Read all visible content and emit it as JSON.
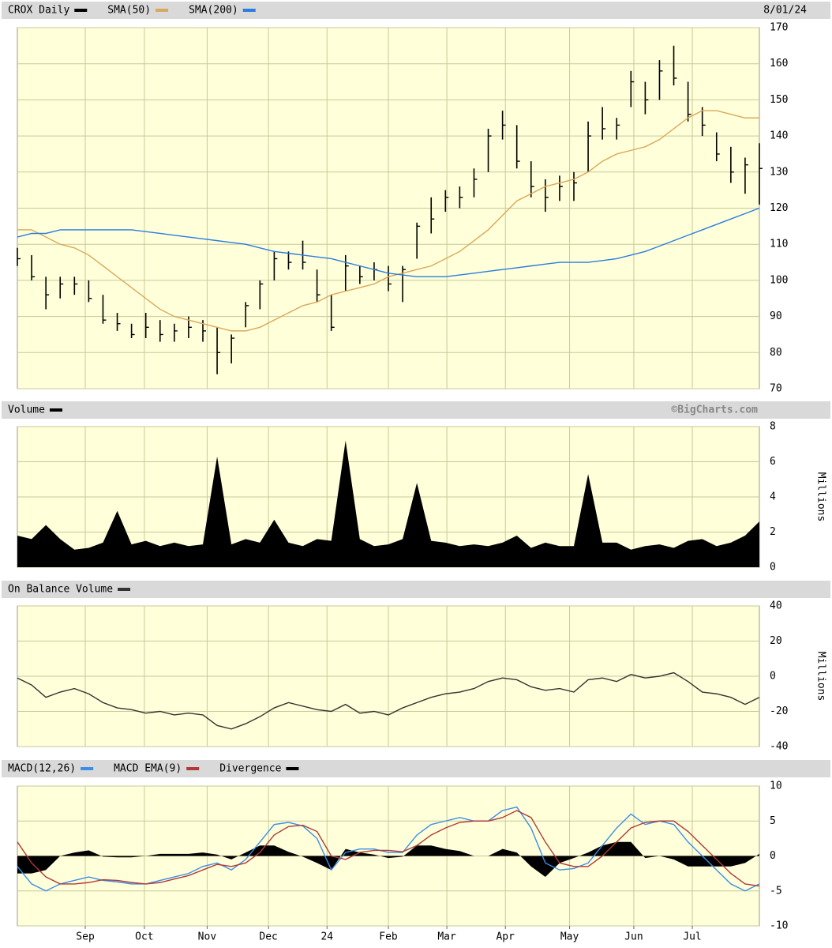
{
  "chart_data": [
    {
      "type": "ohlc",
      "date": "8/01/24",
      "x": [
        0,
        1,
        2,
        3,
        4,
        5,
        6,
        7,
        8,
        9,
        10,
        11,
        12,
        13,
        14,
        15,
        16,
        17,
        18,
        19,
        20,
        21,
        22,
        23,
        24,
        25,
        26,
        27,
        28,
        29,
        30,
        31,
        32,
        33,
        34,
        35,
        36,
        37,
        38,
        39,
        40,
        41,
        42,
        43,
        44,
        45,
        46,
        47,
        48,
        49,
        50,
        51,
        52
      ],
      "series": [
        {
          "name": "CROX Daily",
          "color": "#000000",
          "high": [
            109,
            107,
            101,
            101,
            101,
            100,
            96,
            91,
            88,
            91,
            89,
            88,
            90,
            89,
            87,
            85,
            94,
            100,
            108,
            108,
            111,
            103,
            96,
            107,
            104,
            105,
            104,
            104,
            116,
            123,
            125,
            126,
            131,
            142,
            147,
            143,
            133,
            128,
            129,
            130,
            144,
            148,
            145,
            158,
            155,
            161,
            165,
            155,
            148,
            141,
            137,
            134,
            138
          ],
          "low": [
            104,
            100,
            92,
            95,
            96,
            94,
            88,
            86,
            84,
            84,
            83,
            83,
            84,
            83,
            74,
            77,
            87,
            92,
            100,
            103,
            103,
            94,
            86,
            97,
            99,
            100,
            97,
            94,
            106,
            113,
            119,
            120,
            123,
            130,
            139,
            131,
            123,
            119,
            122,
            122,
            130,
            139,
            139,
            148,
            146,
            150,
            154,
            144,
            140,
            133,
            127,
            124,
            121
          ],
          "close": [
            106,
            101,
            96,
            99,
            99,
            95,
            89,
            88,
            85,
            87,
            85,
            86,
            87,
            86,
            80,
            84,
            93,
            99,
            106,
            105,
            105,
            96,
            87,
            104,
            101,
            103,
            99,
            103,
            115,
            117,
            123,
            123,
            128,
            140,
            143,
            133,
            126,
            123,
            126,
            127,
            140,
            142,
            143,
            155,
            150,
            158,
            156,
            146,
            143,
            135,
            130,
            132,
            131
          ]
        },
        {
          "name": "SMA(50)",
          "type": "line",
          "color": "#d9a85c",
          "values": [
            114,
            114,
            112,
            110,
            109,
            107,
            104,
            101,
            98,
            95,
            92,
            90,
            89,
            88,
            87,
            86,
            86,
            87,
            89,
            91,
            93,
            94,
            96,
            97,
            98,
            99,
            101,
            102,
            103,
            104,
            106,
            108,
            111,
            114,
            118,
            122,
            124,
            126,
            127,
            128,
            130,
            133,
            135,
            136,
            137,
            139,
            142,
            145,
            147,
            147,
            146,
            145,
            145
          ]
        },
        {
          "name": "SMA(200)",
          "type": "line",
          "color": "#2a7de1",
          "values": [
            112,
            113,
            113,
            114,
            114,
            114,
            114,
            114,
            114,
            113.5,
            113,
            112.5,
            112,
            111.5,
            111,
            110.5,
            110,
            109,
            108,
            107.5,
            107,
            106.5,
            106,
            105,
            104,
            103,
            102,
            101.5,
            101,
            101,
            101,
            101.5,
            102,
            102.5,
            103,
            103.5,
            104,
            104.5,
            105,
            105,
            105,
            105.5,
            106,
            107,
            108,
            109.5,
            111,
            112.5,
            114,
            115.5,
            117,
            118.5,
            120
          ]
        }
      ],
      "xlim": [
        0,
        52
      ],
      "ylim": [
        70,
        170
      ],
      "yticks": [
        70,
        80,
        90,
        100,
        110,
        120,
        130,
        140,
        150,
        160,
        170
      ],
      "grid": true
    },
    {
      "type": "area",
      "credit": "©BigCharts.com",
      "y_label": "Millions",
      "x": [
        0,
        1,
        2,
        3,
        4,
        5,
        6,
        7,
        8,
        9,
        10,
        11,
        12,
        13,
        14,
        15,
        16,
        17,
        18,
        19,
        20,
        21,
        22,
        23,
        24,
        25,
        26,
        27,
        28,
        29,
        30,
        31,
        32,
        33,
        34,
        35,
        36,
        37,
        38,
        39,
        40,
        41,
        42,
        43,
        44,
        45,
        46,
        47,
        48,
        49,
        50,
        51,
        52
      ],
      "series": [
        {
          "name": "Volume",
          "color": "#000000",
          "values": [
            1.8,
            1.6,
            2.4,
            1.6,
            1.0,
            1.1,
            1.4,
            3.2,
            1.3,
            1.5,
            1.2,
            1.4,
            1.2,
            1.3,
            6.3,
            1.3,
            1.6,
            1.4,
            2.7,
            1.4,
            1.2,
            1.6,
            1.5,
            7.2,
            1.6,
            1.2,
            1.3,
            1.6,
            4.8,
            1.5,
            1.4,
            1.2,
            1.3,
            1.2,
            1.4,
            1.8,
            1.1,
            1.4,
            1.2,
            1.2,
            5.3,
            1.4,
            1.4,
            1.0,
            1.2,
            1.3,
            1.1,
            1.5,
            1.6,
            1.2,
            1.4,
            1.8,
            2.6
          ]
        }
      ],
      "xlim": [
        0,
        52
      ],
      "ylim": [
        0,
        8
      ],
      "yticks": [
        0,
        2,
        4,
        6,
        8
      ],
      "grid": true
    },
    {
      "type": "line",
      "y_label": "Millions",
      "x": [
        0,
        1,
        2,
        3,
        4,
        5,
        6,
        7,
        8,
        9,
        10,
        11,
        12,
        13,
        14,
        15,
        16,
        17,
        18,
        19,
        20,
        21,
        22,
        23,
        24,
        25,
        26,
        27,
        28,
        29,
        30,
        31,
        32,
        33,
        34,
        35,
        36,
        37,
        38,
        39,
        40,
        41,
        42,
        43,
        44,
        45,
        46,
        47,
        48,
        49,
        50,
        51,
        52
      ],
      "series": [
        {
          "name": "On Balance Volume",
          "color": "#333333",
          "values": [
            -1,
            -5,
            -12,
            -9,
            -7,
            -10,
            -15,
            -18,
            -19,
            -21,
            -20,
            -22,
            -21,
            -22,
            -28,
            -30,
            -27,
            -23,
            -18,
            -15,
            -17,
            -19,
            -20,
            -16,
            -21,
            -20,
            -22,
            -18,
            -15,
            -12,
            -10,
            -9,
            -7,
            -3,
            -1,
            -2,
            -6,
            -8,
            -7,
            -9,
            -2,
            -1,
            -3,
            1,
            -1,
            0,
            2,
            -3,
            -9,
            -10,
            -12,
            -16,
            -12
          ]
        }
      ],
      "xlim": [
        0,
        52
      ],
      "ylim": [
        -40,
        40
      ],
      "yticks": [
        -40,
        -20,
        0,
        20,
        40
      ],
      "grid": true
    },
    {
      "type": "line",
      "x": [
        0,
        1,
        2,
        3,
        4,
        5,
        6,
        7,
        8,
        9,
        10,
        11,
        12,
        13,
        14,
        15,
        16,
        17,
        18,
        19,
        20,
        21,
        22,
        23,
        24,
        25,
        26,
        27,
        28,
        29,
        30,
        31,
        32,
        33,
        34,
        35,
        36,
        37,
        38,
        39,
        40,
        41,
        42,
        43,
        44,
        45,
        46,
        47,
        48,
        49,
        50,
        51,
        52
      ],
      "series": [
        {
          "name": "MACD(12,26)",
          "color": "#3a8ee8",
          "values": [
            -1.5,
            -4,
            -5,
            -4,
            -3.5,
            -3,
            -3.5,
            -3.7,
            -4,
            -4,
            -3.5,
            -3,
            -2.5,
            -1.5,
            -1,
            -2,
            -0.5,
            2,
            4.5,
            4.8,
            4.3,
            2.5,
            -2,
            0.5,
            1,
            1,
            0.5,
            0.5,
            3,
            4.5,
            5,
            5.5,
            5,
            5,
            6.5,
            7,
            4,
            -1,
            -2,
            -1.8,
            -1,
            1.5,
            4,
            6,
            4.5,
            5,
            4.5,
            2,
            0,
            -2,
            -4,
            -5,
            -4
          ]
        },
        {
          "name": "MACD EMA(9)",
          "color": "#b03a3a",
          "values": [
            2,
            -1,
            -3,
            -4,
            -4,
            -3.8,
            -3.4,
            -3.5,
            -3.8,
            -4,
            -3.8,
            -3.3,
            -2.8,
            -2,
            -1.2,
            -1.5,
            -1,
            0.5,
            3,
            4.2,
            4.4,
            3.5,
            0,
            -0.5,
            0.5,
            0.8,
            0.8,
            0.6,
            1.5,
            3,
            4,
            4.8,
            5,
            5,
            5.5,
            6.5,
            5.5,
            2,
            -1,
            -1.5,
            -1.5,
            0,
            2,
            4,
            4.8,
            5,
            5,
            3.5,
            1.5,
            -0.5,
            -2.5,
            -4,
            -4.3
          ]
        },
        {
          "name": "Divergence",
          "type": "area",
          "color": "#000000",
          "values": [
            -2.5,
            -2.5,
            -2,
            0,
            0.5,
            0.8,
            -0.1,
            -0.2,
            -0.2,
            0,
            0.3,
            0.3,
            0.3,
            0.5,
            0.2,
            -0.5,
            0.5,
            1.5,
            1.5,
            0.6,
            -0.1,
            -1,
            -2,
            1,
            0.5,
            0.2,
            -0.3,
            -0.1,
            1.5,
            1.5,
            1,
            0.7,
            0,
            0,
            1,
            0.5,
            -1.5,
            -3,
            -1,
            -0.3,
            0.5,
            1.5,
            2,
            2,
            -0.3,
            0,
            -0.5,
            -1.5,
            -1.5,
            -1.5,
            -1.5,
            -1,
            0.3
          ]
        }
      ],
      "xlim": [
        0,
        52
      ],
      "ylim": [
        -10,
        10
      ],
      "yticks": [
        -10,
        -5,
        0,
        5,
        10
      ],
      "grid": true,
      "xticks": [
        {
          "value": 4.76,
          "label": "Sep"
        },
        {
          "value": 8.9,
          "label": "Oct"
        },
        {
          "value": 13.3,
          "label": "Nov"
        },
        {
          "value": 17.6,
          "label": "Dec"
        },
        {
          "value": 21.7,
          "label": "24"
        },
        {
          "value": 26.0,
          "label": "Feb"
        },
        {
          "value": 30.1,
          "label": "Mar"
        },
        {
          "value": 34.2,
          "label": "Apr"
        },
        {
          "value": 38.7,
          "label": "May"
        },
        {
          "value": 43.2,
          "label": "Jun"
        },
        {
          "value": 47.3,
          "label": "Jul"
        }
      ]
    }
  ]
}
